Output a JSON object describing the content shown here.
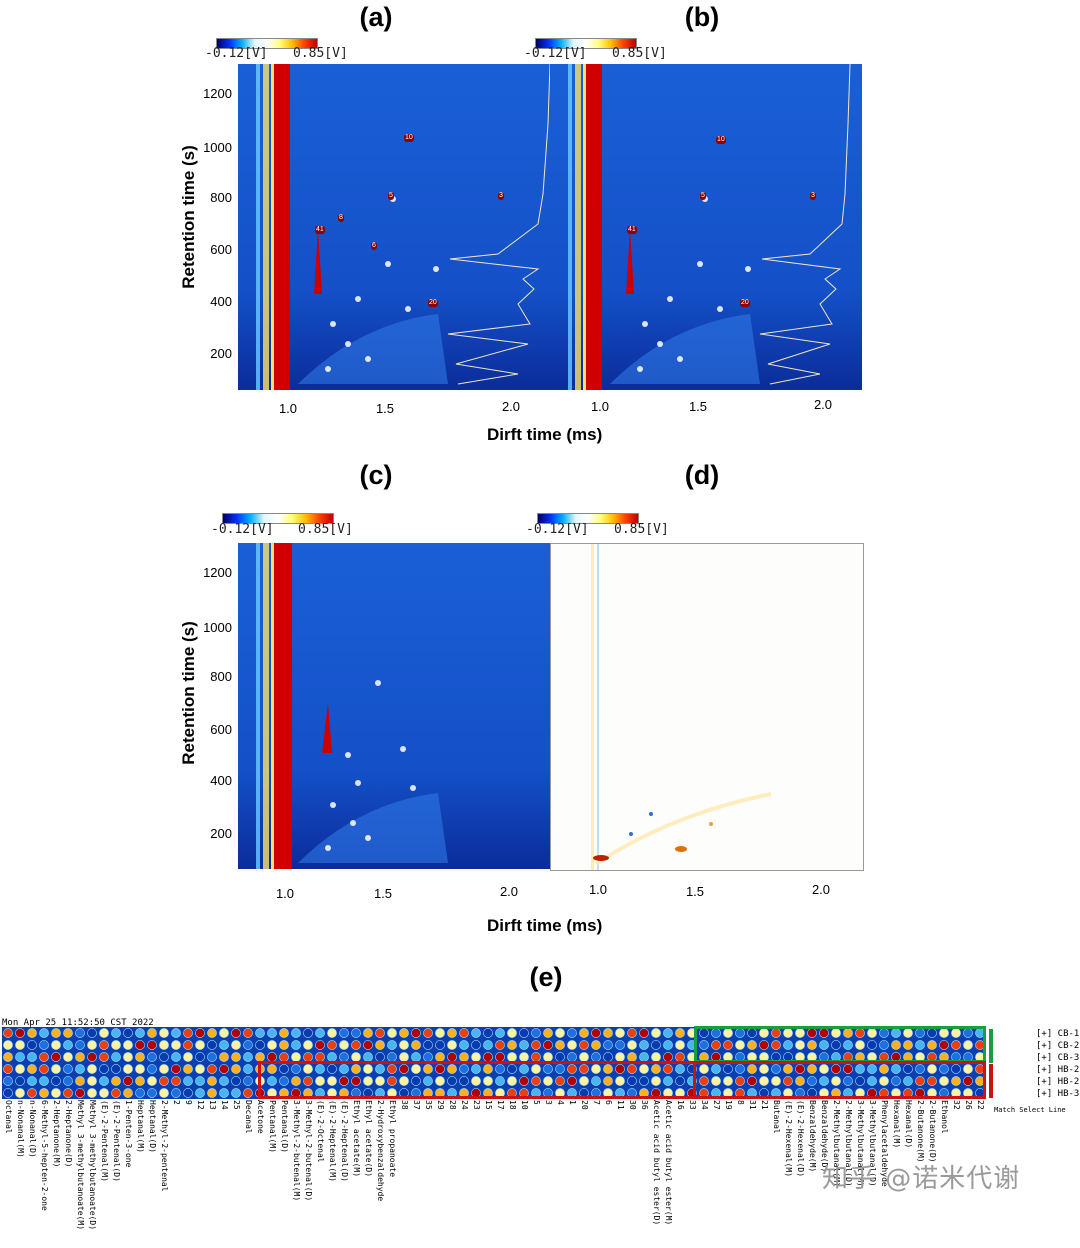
{
  "panels": {
    "a": {
      "label": "(a)"
    },
    "b": {
      "label": "(b)"
    },
    "c": {
      "label": "(c)"
    },
    "d": {
      "label": "(d)"
    },
    "e": {
      "label": "(e)"
    }
  },
  "colorbar": {
    "min": "-0.12[V]",
    "max": "0.85[V]"
  },
  "axes": {
    "ytitle": "Retention time (s)",
    "xtitle": "Dirft time (ms)",
    "yticks": [
      "1200",
      "1000",
      "800",
      "600",
      "400",
      "200"
    ],
    "xticks": [
      "1.0",
      "1.5",
      "2.0"
    ]
  },
  "fingerprint": {
    "date": "Mon Apr 25 11:52:50 CST 2022",
    "rows": [
      "[+] CB-1",
      "[+] CB-2",
      "[+] CB-3",
      "[+] HB-2",
      "[+] HB-2",
      "[+] HB-3"
    ],
    "match_text": "Match Select Line",
    "columns": [
      "Octanal",
      "n-Nonanal(M)",
      "n-Nonanal(D)",
      "6-Methyl-5-hepten-2-one",
      "2-Heptanone(M)",
      "2-Heptanone(D)",
      "Methyl 3-methylbutanoate(M)",
      "Methyl 3-methylbutanoate(D)",
      "(E)-2-Pentenal(M)",
      "(E)-2-Pentenal(D)",
      "1-Penten-3-one",
      "Heptanal(M)",
      "Heptanal(D)",
      "2-Methyl-2-pentenal",
      "2",
      "9",
      "12",
      "13",
      "14",
      "25",
      "Decanal",
      "Acetone",
      "Pentanal(M)",
      "Pentanal(D)",
      "3-Methyl-2-butenal(M)",
      "3-Methyl-2-butenal(D)",
      "(E)-2-Octenal",
      "(E)-2-Heptenal(M)",
      "(E)-2-Heptenal(D)",
      "Ethyl acetate(M)",
      "Ethyl acetate(D)",
      "2-Hydroxybenzaldehyde",
      "Ethyl propanoate",
      "38",
      "37",
      "35",
      "29",
      "28",
      "24",
      "23",
      "15",
      "17",
      "18",
      "10",
      "5",
      "3",
      "4",
      "1",
      "20",
      "7",
      "6",
      "11",
      "30",
      "36",
      "Acetic acid butyl ester(D)",
      "Acetic acid butyl ester(M)",
      "16",
      "33",
      "34",
      "27",
      "19",
      "8",
      "31",
      "21",
      "Butanal",
      "(E)-2-Hexenal(M)",
      "(E)-2-Hexenal(D)",
      "Benzaldehyde(M)",
      "Benzaldehyde(D)",
      "2-Methylbutanal(M)",
      "2-Methylbutanal(D)",
      "3-Methylbutanal(M)",
      "3-Methylbutanal(D)",
      "Phenylacetaldehyde",
      "Hexanal(M)",
      "Hexanal(D)",
      "2-Butanone(M)",
      "2-Butanone(D)",
      "Ethanol",
      "32",
      "26",
      "22"
    ]
  },
  "watermark": "知乎 @诺米代谢"
}
